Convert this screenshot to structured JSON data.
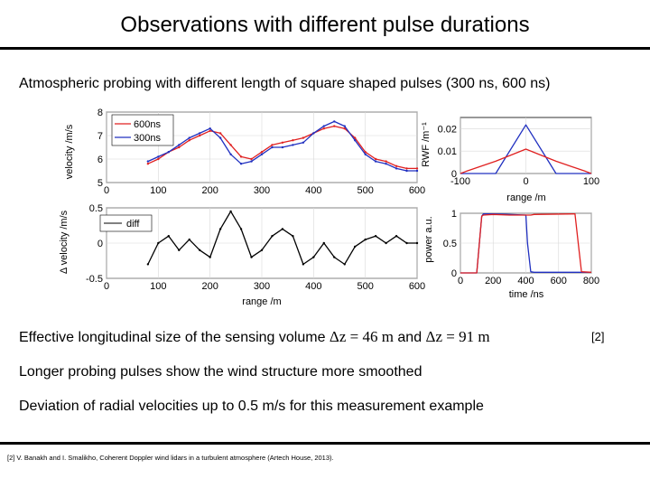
{
  "slide": {
    "title": "Observations with different pulse durations",
    "bullets": [
      "Atmospheric probing with different length of square shaped pulses (300 ns, 600 ns)",
      "Effective longitudinal size of the sensing volume ",
      "Longer probing pulses show the wind structure more smoothed",
      "Deviation of radial velocities up to 0.5 m/s for this measurement example"
    ],
    "bullet2_math": {
      "a": "Δz = 46 m",
      "and": " and ",
      "b": "Δz = 91 m"
    },
    "ref_tag": "[2]",
    "footnote": "[2] V. Banakh and I. Smalikho, Coherent Doppler wind lidars in a turbulent atmosphere (Artech House, 2013)."
  },
  "chart_data": [
    {
      "type": "line",
      "xlabel": "",
      "ylabel": "velocity /m/s",
      "xlim": [
        0,
        600
      ],
      "ylim": [
        5,
        8
      ],
      "xticks": [
        "0",
        "100",
        "200",
        "300",
        "400",
        "500",
        "600"
      ],
      "yticks": [
        "5",
        "6",
        "7",
        "8"
      ],
      "legend": "top-left",
      "x": [
        80,
        100,
        120,
        140,
        160,
        180,
        200,
        220,
        240,
        260,
        280,
        300,
        320,
        340,
        360,
        380,
        400,
        420,
        440,
        460,
        480,
        500,
        520,
        540,
        560,
        580,
        600
      ],
      "series": [
        {
          "name": "600ns",
          "color": "#e02020",
          "values": [
            5.8,
            6.0,
            6.3,
            6.5,
            6.8,
            7.0,
            7.2,
            7.1,
            6.6,
            6.1,
            6.0,
            6.3,
            6.6,
            6.7,
            6.8,
            6.9,
            7.1,
            7.3,
            7.4,
            7.3,
            6.9,
            6.3,
            6.0,
            5.9,
            5.7,
            5.6,
            5.6
          ]
        },
        {
          "name": "300ns",
          "color": "#2030c0",
          "values": [
            5.9,
            6.1,
            6.3,
            6.6,
            6.9,
            7.1,
            7.3,
            6.9,
            6.2,
            5.8,
            5.9,
            6.2,
            6.5,
            6.5,
            6.6,
            6.7,
            7.1,
            7.4,
            7.6,
            7.4,
            6.8,
            6.2,
            5.9,
            5.8,
            5.6,
            5.5,
            5.5
          ]
        }
      ]
    },
    {
      "type": "line",
      "xlabel": "range /m",
      "ylabel": "Δ velocity /m/s",
      "xlim": [
        0,
        600
      ],
      "ylim": [
        -0.5,
        0.5
      ],
      "xticks": [
        "0",
        "100",
        "200",
        "300",
        "400",
        "500",
        "600"
      ],
      "yticks": [
        "-0.5",
        "0",
        "0.5"
      ],
      "legend": "top-left",
      "x": [
        80,
        100,
        120,
        140,
        160,
        180,
        200,
        220,
        240,
        260,
        280,
        300,
        320,
        340,
        360,
        380,
        400,
        420,
        440,
        460,
        480,
        500,
        520,
        540,
        560,
        580,
        600
      ],
      "series": [
        {
          "name": "diff",
          "color": "#000000",
          "values": [
            -0.3,
            0.0,
            0.1,
            -0.1,
            0.05,
            -0.1,
            -0.2,
            0.2,
            0.45,
            0.2,
            -0.2,
            -0.1,
            0.1,
            0.2,
            0.1,
            -0.3,
            -0.2,
            0.0,
            -0.2,
            -0.3,
            -0.05,
            0.05,
            0.1,
            0.0,
            0.1,
            0.0,
            0.0
          ]
        }
      ]
    },
    {
      "type": "line",
      "xlabel": "range /m",
      "ylabel": "RWF /m⁻¹",
      "xlim": [
        -100,
        100
      ],
      "ylim": [
        0,
        0.025
      ],
      "xticks": [
        "-100",
        "0",
        "100"
      ],
      "yticks": [
        "0",
        "0.01",
        "0.02"
      ],
      "x": [
        -100,
        -92,
        -46,
        0,
        46,
        92,
        100
      ],
      "series": [
        {
          "name": "",
          "color": "#2030c0",
          "values": [
            0,
            0,
            0,
            0.0217,
            0,
            0,
            0
          ]
        },
        {
          "name": "",
          "color": "#e02020",
          "values": [
            0,
            0.0009,
            0.0055,
            0.0109,
            0.0055,
            0.0009,
            0
          ]
        }
      ]
    },
    {
      "type": "line",
      "xlabel": "time /ns",
      "ylabel": "power a.u.",
      "xlim": [
        0,
        800
      ],
      "ylim": [
        0,
        1
      ],
      "xticks": [
        "0",
        "200",
        "400",
        "600",
        "800"
      ],
      "yticks": [
        "0",
        "0.5",
        "1"
      ],
      "x": [
        0,
        100,
        130,
        140,
        200,
        300,
        400,
        410,
        430,
        450,
        700,
        720,
        740,
        800
      ],
      "series": [
        {
          "name": "",
          "color": "#2030c0",
          "values": [
            0,
            0,
            0.95,
            0.99,
            0.99,
            0.98,
            0.97,
            0.5,
            0.02,
            0.01,
            0.01,
            0.01,
            0.01,
            0.01
          ]
        },
        {
          "name": "",
          "color": "#e02020",
          "values": [
            0,
            0,
            0.95,
            0.97,
            0.98,
            0.97,
            0.97,
            0.97,
            0.97,
            0.98,
            0.99,
            0.5,
            0.02,
            0.01
          ]
        }
      ]
    }
  ]
}
